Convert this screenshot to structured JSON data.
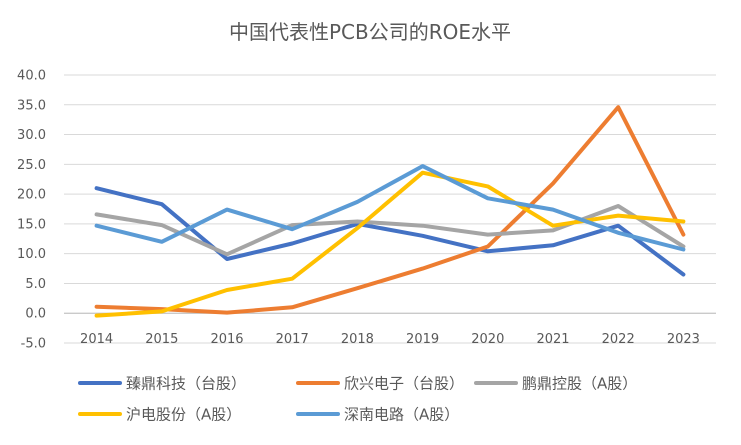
{
  "chart_data": {
    "type": "line",
    "title": "中国代表性PCB公司的ROE水平",
    "xlabel": "",
    "ylabel": "",
    "ylim": [
      -5.0,
      40.0
    ],
    "yticks": [
      "-5.0",
      "0.0",
      "5.0",
      "10.0",
      "15.0",
      "20.0",
      "25.0",
      "30.0",
      "35.0",
      "40.0"
    ],
    "categories": [
      "2014",
      "2015",
      "2016",
      "2017",
      "2018",
      "2019",
      "2020",
      "2021",
      "2022",
      "2023"
    ],
    "grid": true,
    "legend_position": "bottom",
    "series": [
      {
        "name": "臻鼎科技（台股）",
        "color": "#4472c4",
        "values": [
          21.0,
          18.3,
          9.1,
          11.7,
          15.0,
          13.0,
          10.4,
          11.4,
          14.7,
          6.5
        ]
      },
      {
        "name": "欣兴电子（台股）",
        "color": "#ed7d31",
        "values": [
          1.1,
          0.7,
          0.1,
          1.0,
          4.2,
          7.5,
          11.2,
          21.8,
          34.6,
          13.2
        ]
      },
      {
        "name": "鹏鼎控股（A股）",
        "color": "#a5a5a5",
        "values": [
          16.6,
          14.8,
          9.9,
          14.8,
          15.4,
          14.7,
          13.2,
          13.9,
          18.0,
          11.2
        ]
      },
      {
        "name": "沪电股份（A股）",
        "color": "#ffc000",
        "values": [
          -0.4,
          0.3,
          3.9,
          5.8,
          14.3,
          23.6,
          21.3,
          14.7,
          16.4,
          15.4
        ]
      },
      {
        "name": "深南电路（A股）",
        "color": "#5b9bd5",
        "values": [
          14.7,
          12.0,
          17.4,
          14.1,
          18.7,
          24.7,
          19.3,
          17.4,
          13.5,
          10.7
        ]
      }
    ]
  }
}
